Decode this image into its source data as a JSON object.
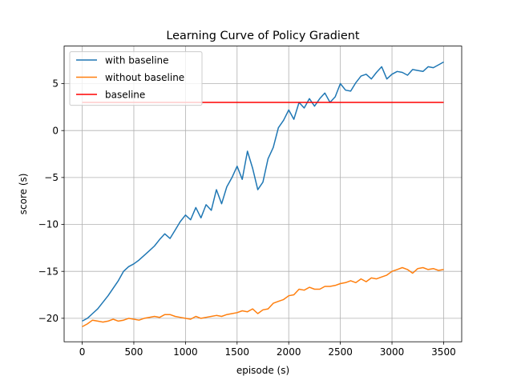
{
  "chart_data": {
    "type": "line",
    "title": "Learning Curve of Policy Gradient",
    "xlabel": "episode (s)",
    "ylabel": "score (s)",
    "xlim": [
      -175,
      3675
    ],
    "ylim": [
      -22.5,
      9.0
    ],
    "xticks": [
      0,
      500,
      1000,
      1500,
      2000,
      2500,
      3000,
      3500
    ],
    "yticks": [
      -20,
      -15,
      -10,
      -5,
      0,
      5
    ],
    "xtick_labels": [
      "0",
      "500",
      "1000",
      "1500",
      "2000",
      "2500",
      "3000",
      "3500"
    ],
    "ytick_labels": [
      "−20",
      "−15",
      "−10",
      "−5",
      "0",
      "5"
    ],
    "grid": true,
    "legend_position": "upper-left",
    "series": [
      {
        "name": "with baseline",
        "color": "#1f77b4",
        "x": [
          0,
          50,
          100,
          150,
          200,
          250,
          300,
          350,
          400,
          450,
          500,
          550,
          600,
          650,
          700,
          750,
          800,
          850,
          900,
          950,
          1000,
          1050,
          1100,
          1150,
          1200,
          1250,
          1300,
          1350,
          1400,
          1450,
          1500,
          1550,
          1600,
          1650,
          1700,
          1750,
          1800,
          1850,
          1900,
          1950,
          2000,
          2050,
          2100,
          2150,
          2200,
          2250,
          2300,
          2350,
          2400,
          2450,
          2500,
          2550,
          2600,
          2650,
          2700,
          2750,
          2800,
          2850,
          2900,
          2950,
          3000,
          3050,
          3100,
          3150,
          3200,
          3250,
          3300,
          3350,
          3400,
          3450,
          3500
        ],
        "y": [
          -20.3,
          -20.0,
          -19.5,
          -19.0,
          -18.3,
          -17.6,
          -16.8,
          -16.0,
          -15.0,
          -14.5,
          -14.2,
          -13.8,
          -13.3,
          -12.8,
          -12.3,
          -11.6,
          -11.0,
          -11.5,
          -10.6,
          -9.7,
          -9.0,
          -9.5,
          -8.2,
          -9.3,
          -7.9,
          -8.5,
          -6.3,
          -7.8,
          -6.0,
          -5.0,
          -3.8,
          -5.2,
          -2.2,
          -4.0,
          -6.3,
          -5.5,
          -3.0,
          -1.8,
          0.3,
          1.1,
          2.2,
          1.2,
          3.0,
          2.4,
          3.4,
          2.6,
          3.4,
          4.0,
          3.0,
          3.6,
          5.0,
          4.3,
          4.2,
          5.1,
          5.8,
          6.0,
          5.5,
          6.2,
          6.8,
          5.5,
          6.0,
          6.3,
          6.2,
          5.9,
          6.5,
          6.4,
          6.3,
          6.8,
          6.7,
          7.0,
          7.3
        ]
      },
      {
        "name": "without baseline",
        "color": "#ff7f0e",
        "x": [
          0,
          50,
          100,
          150,
          200,
          250,
          300,
          350,
          400,
          450,
          500,
          550,
          600,
          650,
          700,
          750,
          800,
          850,
          900,
          950,
          1000,
          1050,
          1100,
          1150,
          1200,
          1250,
          1300,
          1350,
          1400,
          1450,
          1500,
          1550,
          1600,
          1650,
          1700,
          1750,
          1800,
          1850,
          1900,
          1950,
          2000,
          2050,
          2100,
          2150,
          2200,
          2250,
          2300,
          2350,
          2400,
          2450,
          2500,
          2550,
          2600,
          2650,
          2700,
          2750,
          2800,
          2850,
          2900,
          2950,
          3000,
          3050,
          3100,
          3150,
          3200,
          3250,
          3300,
          3350,
          3400,
          3450,
          3500
        ],
        "y": [
          -20.9,
          -20.6,
          -20.2,
          -20.3,
          -20.4,
          -20.3,
          -20.1,
          -20.3,
          -20.2,
          -20.0,
          -20.1,
          -20.2,
          -20.0,
          -19.9,
          -19.8,
          -19.9,
          -19.6,
          -19.6,
          -19.8,
          -19.9,
          -20.0,
          -20.1,
          -19.8,
          -20.0,
          -19.9,
          -19.8,
          -19.7,
          -19.8,
          -19.6,
          -19.5,
          -19.4,
          -19.2,
          -19.3,
          -19.0,
          -19.5,
          -19.1,
          -19.0,
          -18.4,
          -18.2,
          -18.0,
          -17.6,
          -17.5,
          -16.9,
          -17.0,
          -16.7,
          -16.9,
          -16.9,
          -16.6,
          -16.6,
          -16.5,
          -16.3,
          -16.2,
          -16.0,
          -16.2,
          -15.8,
          -16.1,
          -15.7,
          -15.8,
          -15.6,
          -15.4,
          -15.0,
          -14.8,
          -14.6,
          -14.8,
          -15.2,
          -14.7,
          -14.6,
          -14.8,
          -14.7,
          -14.9,
          -14.8
        ]
      },
      {
        "name": "baseline",
        "color": "#ff0000",
        "x": [
          0,
          3500
        ],
        "y": [
          3.0,
          3.0
        ]
      }
    ]
  }
}
